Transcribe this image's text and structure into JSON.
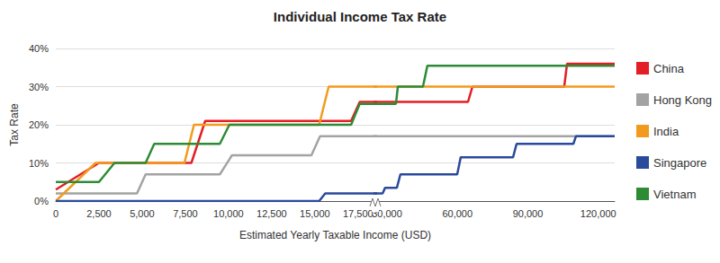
{
  "chart_data": {
    "type": "line",
    "title": "Individual Income Tax Rate",
    "x_label": "Estimated Yearly Taxable Income (USD)",
    "y_label": "Tax Rate",
    "xlim": [
      [
        0,
        18500
      ],
      [
        25000,
        127000
      ]
    ],
    "xticks": [
      [
        0,
        {
          "value": 2500,
          "label": "2,500"
        },
        {
          "value": 5000,
          "label": "5,000"
        },
        {
          "value": 7500,
          "label": "7,500"
        },
        {
          "value": 10000,
          "label": "10,000"
        },
        {
          "value": 12500,
          "label": "12,500"
        },
        {
          "value": 15000,
          "label": "15,000"
        },
        {
          "value": 17500,
          "label": "17,500"
        }
      ],
      [
        {
          "value": 30000,
          "label": "30,000"
        },
        {
          "value": 60000,
          "label": "60,000"
        },
        {
          "value": 90000,
          "label": "90,000"
        },
        {
          "value": 120000,
          "label": "120,000"
        }
      ]
    ],
    "ylim": [
      0,
      40
    ],
    "yticks": [
      {
        "value": 0,
        "label": "0%"
      },
      {
        "value": 10,
        "label": "10%"
      },
      {
        "value": 20,
        "label": "20%"
      },
      {
        "value": 30,
        "label": "30%"
      },
      {
        "value": 40,
        "label": "40%"
      }
    ],
    "grid": true,
    "legend": "right",
    "series": [
      {
        "name": "China",
        "color": "#e31e24",
        "x": [
          0,
          2500,
          7850,
          8650,
          17100,
          17600,
          64500,
          66400,
          105500,
          106700,
          127000
        ],
        "values": [
          3,
          10,
          10,
          21,
          21,
          26,
          26,
          30,
          30,
          36,
          36
        ]
      },
      {
        "name": "Hong Kong",
        "color": "#a3a3a3",
        "x": [
          0,
          4700,
          5200,
          9500,
          10200,
          14800,
          15300,
          127000
        ],
        "values": [
          2,
          2,
          7,
          7,
          12,
          12,
          17,
          17
        ]
      },
      {
        "name": "India",
        "color": "#f39a1e",
        "x": [
          0,
          2300,
          7450,
          8000,
          15250,
          15800,
          127000
        ],
        "values": [
          0,
          10,
          10,
          20,
          20,
          30,
          30
        ]
      },
      {
        "name": "Singapore",
        "color": "#2a4a9b",
        "x": [
          0,
          15250,
          15600,
          28100,
          29200,
          34200,
          35700,
          59900,
          61400,
          83700,
          85200,
          109400,
          110500,
          127000
        ],
        "values": [
          0,
          0,
          2,
          2,
          3.5,
          3.5,
          7,
          7,
          11.5,
          11.5,
          15,
          15,
          17,
          17
        ]
      },
      {
        "name": "Vietnam",
        "color": "#2e8b35",
        "x": [
          0,
          2500,
          3400,
          5200,
          5700,
          9500,
          10050,
          17100,
          17600,
          33800,
          34600,
          45300,
          47200,
          127000
        ],
        "values": [
          5,
          5,
          10,
          10,
          15,
          15,
          20,
          20,
          25.5,
          25.5,
          30,
          30,
          35.5,
          35.5
        ]
      }
    ]
  }
}
